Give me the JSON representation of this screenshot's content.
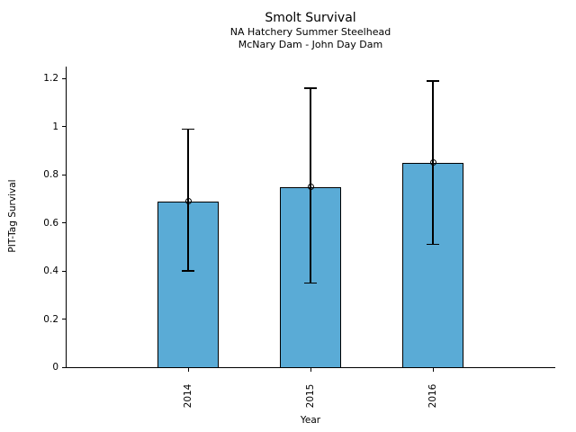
{
  "header": {
    "title": "Smolt Survival",
    "subtitle1": "NA Hatchery Summer Steelhead",
    "subtitle2": "McNary Dam - John Day Dam"
  },
  "chart_data": {
    "type": "bar",
    "title": "Smolt Survival",
    "subtitles": [
      "NA Hatchery Summer Steelhead",
      "McNary Dam - John Day Dam"
    ],
    "xlabel": "Year",
    "ylabel": "PIT-Tag Survival",
    "categories": [
      "2014",
      "2015",
      "2016"
    ],
    "values": [
      0.69,
      0.75,
      0.85
    ],
    "error_low": [
      0.4,
      0.35,
      0.51
    ],
    "error_high": [
      0.99,
      1.16,
      1.19
    ],
    "ylim": [
      0,
      1.25
    ],
    "yticks": [
      0,
      0.2,
      0.4,
      0.6,
      0.8,
      1.0,
      1.2
    ],
    "ytick_labels": [
      "0",
      "0.2",
      "0.4",
      "0.6",
      "0.8",
      "1",
      "1.2"
    ],
    "grid": false,
    "legend": false,
    "marker": "open-circle",
    "colors": {
      "bar_fill": "#5AABD6",
      "bar_edge": "#000000",
      "error_bar": "#000000",
      "text": "#000000"
    }
  }
}
